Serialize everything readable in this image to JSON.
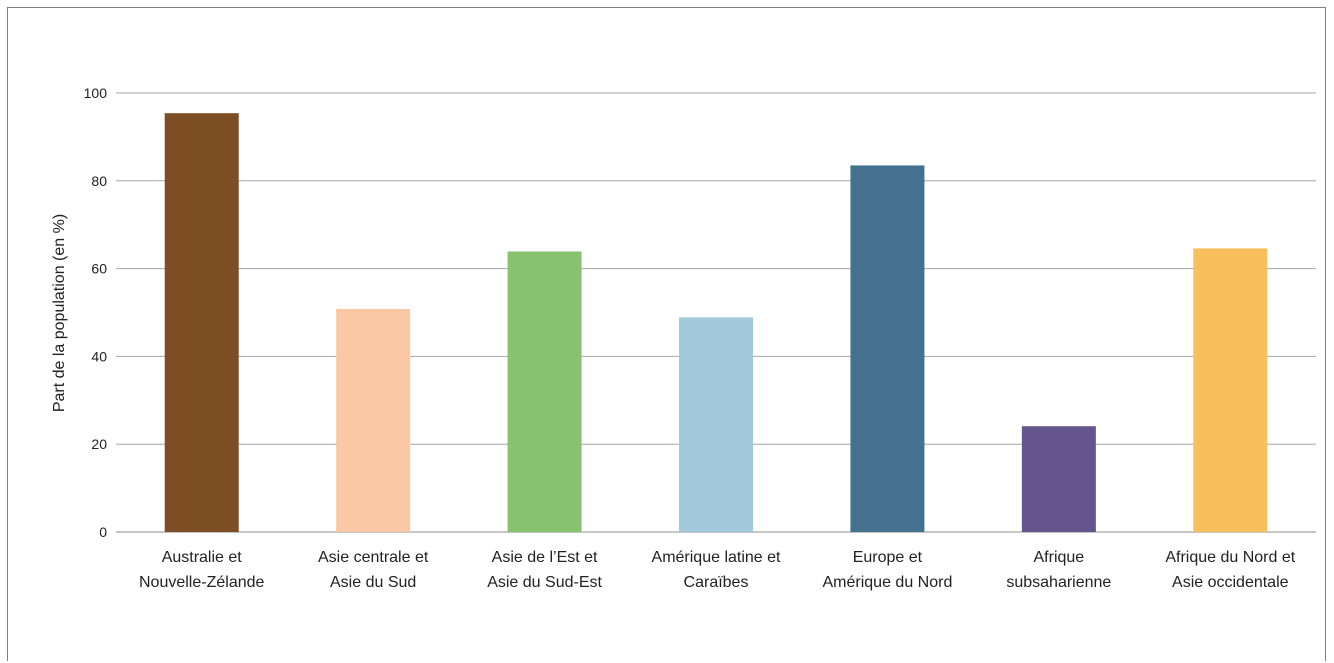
{
  "chart_data": {
    "type": "bar",
    "title": "",
    "xlabel": "",
    "ylabel": "Part de la population (en %)",
    "ylim": [
      0,
      100
    ],
    "yticks": [
      0,
      20,
      40,
      60,
      80,
      100
    ],
    "grid": true,
    "categories": [
      [
        "Australie et",
        "Nouvelle-Zélande"
      ],
      [
        "Asie centrale et",
        "Asie du Sud"
      ],
      [
        "Asie de l’Est et",
        "Asie du Sud-Est"
      ],
      [
        "Amérique latine et",
        "Caraïbes"
      ],
      [
        "Europe et",
        "Amérique du Nord"
      ],
      [
        "Afrique",
        "subsaharienne"
      ],
      [
        "Afrique du Nord et",
        "Asie occidentale"
      ]
    ],
    "values": [
      95.4,
      50.8,
      63.9,
      48.9,
      83.5,
      24.1,
      64.6
    ],
    "colors": [
      "#7d4e24",
      "#fac8a4",
      "#87c26e",
      "#a2c9db",
      "#43718e",
      "#65558f",
      "#f7c05c"
    ]
  }
}
